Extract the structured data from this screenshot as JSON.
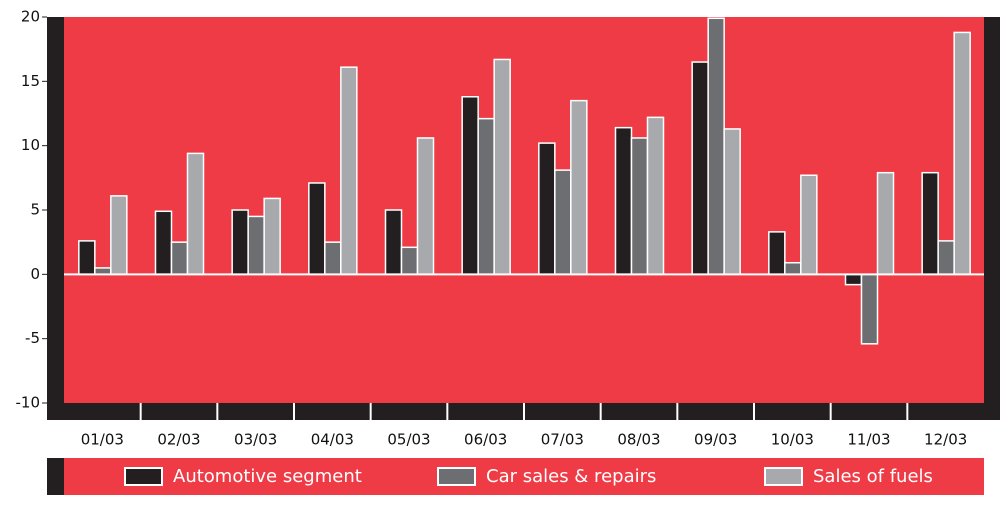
{
  "chart_data": {
    "type": "bar",
    "categories": [
      "01/03",
      "02/03",
      "03/03",
      "04/03",
      "05/03",
      "06/03",
      "07/03",
      "08/03",
      "09/03",
      "10/03",
      "11/03",
      "12/03"
    ],
    "series": [
      {
        "name": "Automotive segment",
        "color": "#231f20",
        "values": [
          2.6,
          4.9,
          5.0,
          7.1,
          5.0,
          13.8,
          10.2,
          11.4,
          16.5,
          3.3,
          -0.8,
          7.9
        ]
      },
      {
        "name": "Car sales & repairs",
        "color": "#6d6e71",
        "values": [
          0.5,
          2.5,
          4.5,
          2.5,
          2.1,
          12.1,
          8.1,
          10.6,
          19.9,
          0.9,
          -5.4,
          2.6
        ]
      },
      {
        "name": "Sales of fuels",
        "color": "#a7a9ac",
        "values": [
          6.1,
          9.4,
          5.9,
          16.1,
          10.6,
          16.7,
          13.5,
          12.2,
          11.3,
          7.7,
          7.9,
          18.8
        ]
      }
    ],
    "ylim": [
      -10,
      20
    ],
    "yticks": [
      -10,
      -5,
      0,
      5,
      10,
      15,
      20
    ],
    "background": "#ef3b45"
  }
}
